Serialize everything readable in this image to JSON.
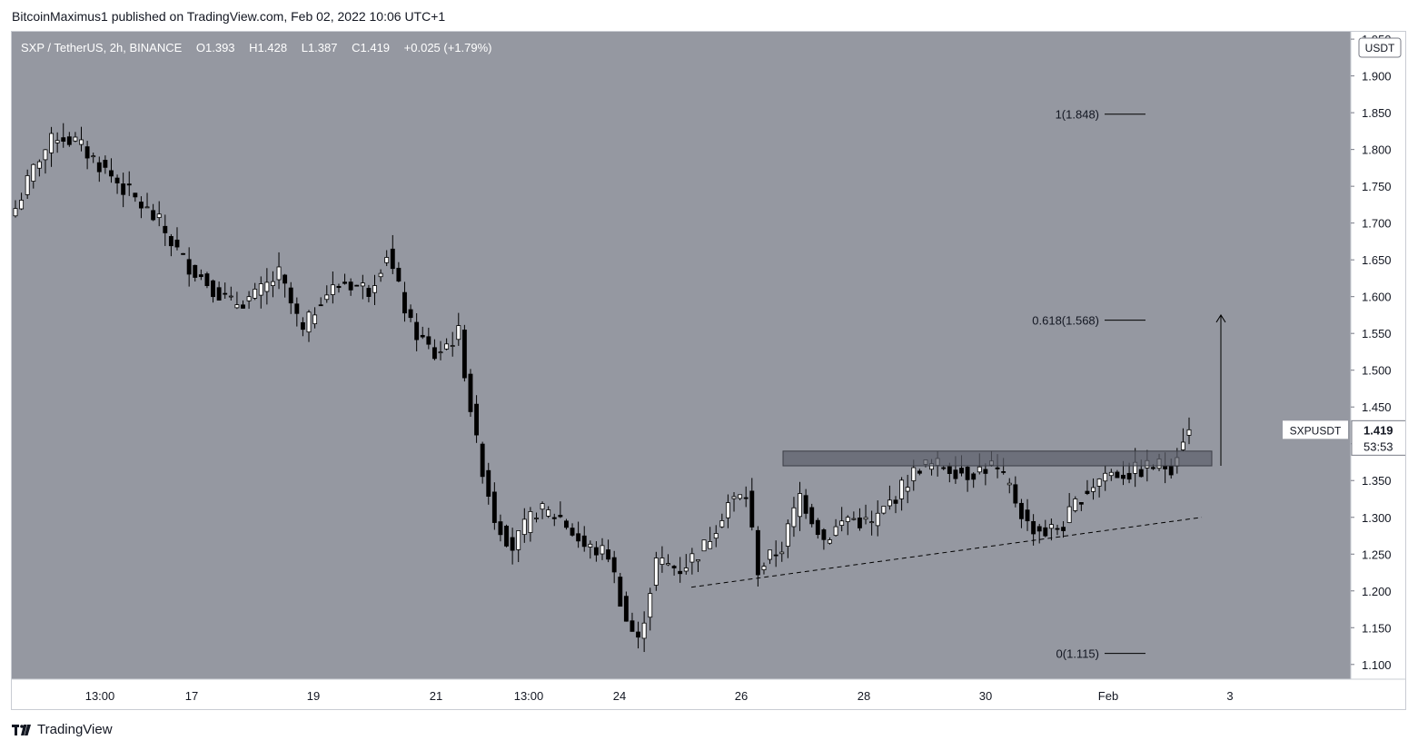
{
  "publisher": "BitcoinMaximus1 published on TradingView.com, Feb 02, 2022 10:06 UTC+1",
  "footer": {
    "brand": "TradingView",
    "logo_icon": "tradingview-logo-icon"
  },
  "legend": {
    "symbol": "SXP / TetherUS, 2h, BINANCE",
    "open": "O1.393",
    "high": "H1.428",
    "low": "L1.387",
    "close": "C1.419",
    "change": "+0.025 (+1.79%)"
  },
  "price_axis": {
    "currency": "USDT",
    "ticks": [
      "1.100",
      "1.150",
      "1.200",
      "1.250",
      "1.300",
      "1.350",
      "1.400",
      "1.450",
      "1.500",
      "1.550",
      "1.600",
      "1.650",
      "1.700",
      "1.750",
      "1.800",
      "1.850",
      "1.900",
      "1.950"
    ]
  },
  "price_tag": {
    "symbol": "SXPUSDT",
    "price": "1.419",
    "countdown": "53:53"
  },
  "time_axis": {
    "labels": [
      "13:00",
      "17",
      "19",
      "21",
      "13:00",
      "24",
      "26",
      "28",
      "30",
      "Feb",
      "3"
    ]
  },
  "fib_levels": [
    {
      "label": "1(1.848)",
      "value": 1.848
    },
    {
      "label": "0.618(1.568)",
      "value": 1.568
    },
    {
      "label": "0(1.115)",
      "value": 1.115
    }
  ],
  "colors": {
    "background": "#9598a1",
    "bull": "#ffffff",
    "bear": "#000000",
    "axis_bg": "#ffffff"
  },
  "chart_data": {
    "type": "candlestick",
    "timeframe": "2h",
    "ylim": [
      1.08,
      1.96
    ],
    "resistance_zone": [
      1.37,
      1.39
    ],
    "ascending_support": {
      "from": [
        1.205
      ],
      "to": [
        1.3
      ]
    },
    "target_arrow": {
      "from": 1.37,
      "to": 1.575
    },
    "close_path": [
      [
        0,
        1.72
      ],
      [
        4,
        1.79
      ],
      [
        7,
        1.82
      ],
      [
        10,
        1.81
      ],
      [
        14,
        1.78
      ],
      [
        19,
        1.74
      ],
      [
        24,
        1.7
      ],
      [
        28,
        1.65
      ],
      [
        32,
        1.62
      ],
      [
        36,
        1.59
      ],
      [
        40,
        1.6
      ],
      [
        44,
        1.63
      ],
      [
        48,
        1.55
      ],
      [
        51,
        1.6
      ],
      [
        55,
        1.62
      ],
      [
        59,
        1.61
      ],
      [
        62,
        1.66
      ],
      [
        66,
        1.56
      ],
      [
        70,
        1.52
      ],
      [
        74,
        1.55
      ],
      [
        77,
        1.4
      ],
      [
        80,
        1.3
      ],
      [
        83,
        1.26
      ],
      [
        87,
        1.31
      ],
      [
        91,
        1.3
      ],
      [
        95,
        1.26
      ],
      [
        99,
        1.25
      ],
      [
        102,
        1.16
      ],
      [
        104,
        1.13
      ],
      [
        107,
        1.24
      ],
      [
        111,
        1.23
      ],
      [
        115,
        1.26
      ],
      [
        119,
        1.32
      ],
      [
        122,
        1.33
      ],
      [
        124,
        1.23
      ],
      [
        128,
        1.26
      ],
      [
        131,
        1.33
      ],
      [
        135,
        1.27
      ],
      [
        139,
        1.3
      ],
      [
        143,
        1.29
      ],
      [
        147,
        1.33
      ],
      [
        151,
        1.37
      ],
      [
        155,
        1.37
      ],
      [
        159,
        1.36
      ],
      [
        163,
        1.37
      ],
      [
        166,
        1.34
      ],
      [
        169,
        1.29
      ],
      [
        172,
        1.28
      ],
      [
        175,
        1.29
      ],
      [
        178,
        1.33
      ],
      [
        182,
        1.36
      ],
      [
        186,
        1.36
      ],
      [
        190,
        1.37
      ],
      [
        193,
        1.37
      ],
      [
        195,
        1.41
      ],
      [
        196,
        1.419
      ]
    ]
  }
}
